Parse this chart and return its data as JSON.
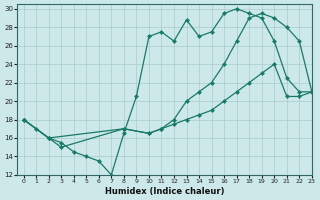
{
  "xlabel": "Humidex (Indice chaleur)",
  "bg_color": "#cce8e8",
  "grid_color": "#aacccc",
  "line_color": "#1a7a6a",
  "xlim": [
    -0.5,
    23
  ],
  "ylim": [
    12,
    30.5
  ],
  "xticks": [
    0,
    1,
    2,
    3,
    4,
    5,
    6,
    7,
    8,
    9,
    10,
    11,
    12,
    13,
    14,
    15,
    16,
    17,
    18,
    19,
    20,
    21,
    22,
    23
  ],
  "yticks": [
    12,
    14,
    16,
    18,
    20,
    22,
    24,
    26,
    28,
    30
  ],
  "line_upper_x": [
    0,
    1,
    2,
    3,
    4,
    5,
    6,
    7,
    8,
    9,
    10,
    11,
    12,
    13,
    14,
    15,
    16,
    17,
    18,
    19,
    20,
    21,
    22,
    23
  ],
  "line_upper_y": [
    18,
    17,
    16,
    15.5,
    14.5,
    14,
    13.5,
    12,
    16.5,
    20.5,
    27,
    27.5,
    26.5,
    28.8,
    27,
    27.5,
    29.5,
    30,
    29.5,
    29,
    26.5,
    22.5,
    21,
    21
  ],
  "line_mid_x": [
    0,
    2,
    3,
    8,
    10,
    11,
    12,
    13,
    14,
    15,
    16,
    17,
    18,
    19,
    20,
    21,
    22,
    23
  ],
  "line_mid_y": [
    18,
    16,
    15,
    17,
    16.5,
    17,
    18,
    20,
    21,
    22,
    24,
    26.5,
    29,
    29.5,
    29,
    28,
    26.5,
    21
  ],
  "line_lower_x": [
    0,
    2,
    8,
    10,
    11,
    12,
    13,
    14,
    15,
    16,
    17,
    18,
    19,
    20,
    21,
    22,
    23
  ],
  "line_lower_y": [
    18,
    16,
    17,
    16.5,
    17,
    17.5,
    18,
    18.5,
    19,
    20,
    21,
    22,
    23,
    24,
    20.5,
    20.5,
    21
  ]
}
